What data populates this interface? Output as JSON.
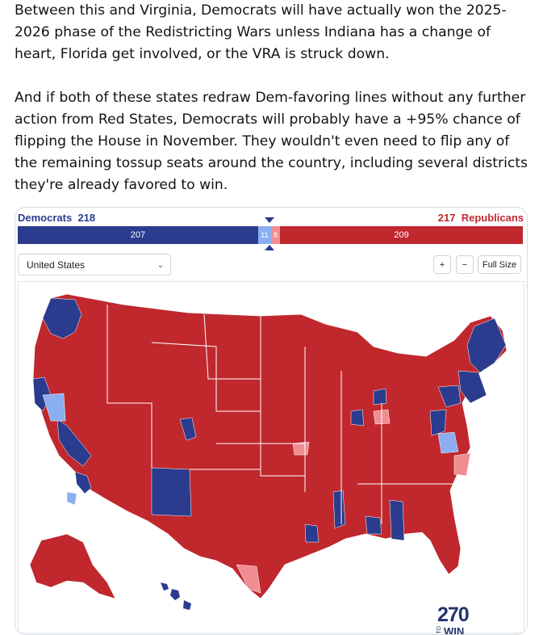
{
  "post": {
    "paragraph1": "Between this and Virginia, Democrats will have actually won the 2025-2026 phase of the Redistricting Wars unless Indiana has a change of heart, Florida get involved, or the VRA is struck down.",
    "paragraph2": "And if both of these states redraw Dem-favoring lines without any further action from Red States, Democrats will probably have a +95% chance of flipping the House in November. They wouldn't even need to flip any of the remaining tossup seats around the country, including several districts they're already favored to win."
  },
  "header": {
    "dem_label": "Democrats",
    "dem_total": "218",
    "rep_label": "Republicans",
    "rep_total": "217"
  },
  "bar": {
    "dem_safe": 207,
    "dem_safe_label": "207",
    "dem_lean": 11,
    "dem_lean_label": "11",
    "rep_lean": 8,
    "rep_lean_label": "8",
    "rep_safe": 209,
    "rep_safe_label": "209",
    "total": 435
  },
  "controls": {
    "region_select": "United States",
    "zoom_in": "+",
    "zoom_out": "−",
    "full_size": "Full Size"
  },
  "colors": {
    "dem_safe": "#2b3b8e",
    "dem_lean": "#8aaef0",
    "rep_safe": "#c0282e",
    "rep_lean": "#ef8d92"
  },
  "logo": {
    "number": "270",
    "to": "TO",
    "win": "WIN"
  }
}
